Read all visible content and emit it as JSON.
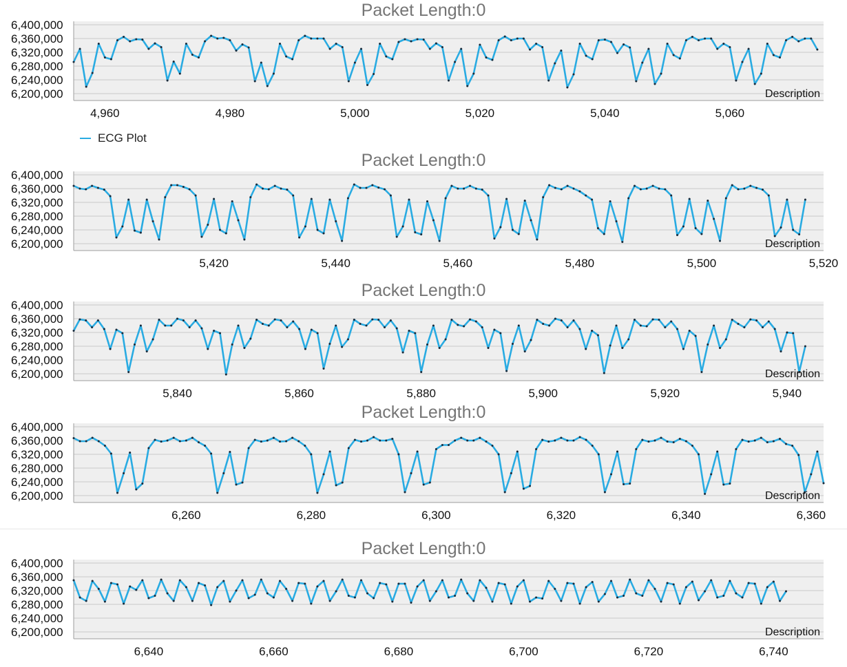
{
  "legend": {
    "label": "ECG Plot",
    "color": "#29abe2"
  },
  "panels": [
    {
      "title_prefix": "Packet Length:",
      "title_value": "0",
      "description": "Description"
    },
    {
      "title_prefix": "Packet Length:",
      "title_value": "0",
      "description": "Description"
    },
    {
      "title_prefix": "Packet Length:",
      "title_value": "0",
      "description": "Description"
    },
    {
      "title_prefix": "Packet Length:",
      "title_value": "0",
      "description": "Description"
    },
    {
      "title_prefix": "Packet Length:",
      "title_value": "0",
      "description": "Description"
    }
  ],
  "chart_data": [
    {
      "type": "line",
      "title": "Packet Length: 0",
      "series_name": "ECG Plot",
      "xlim": [
        4955,
        5075
      ],
      "ylim": [
        6180000,
        6410000
      ],
      "xticks": [
        4960,
        4980,
        5000,
        5020,
        5040,
        5060
      ],
      "xtick_labels": [
        "4,960",
        "4,980",
        "5,000",
        "5,020",
        "5,040",
        "5,060"
      ],
      "yticks": [
        6200000,
        6240000,
        6280000,
        6320000,
        6360000,
        6400000
      ],
      "ytick_labels": [
        "6,200,000",
        "6,240,000",
        "6,280,000",
        "6,320,000",
        "6,360,000",
        "6,400,000"
      ],
      "x_start": 4955,
      "x_step": 1,
      "values": [
        6292000,
        6330000,
        6220000,
        6260000,
        6345000,
        6305000,
        6300000,
        6355000,
        6365000,
        6352000,
        6358000,
        6357000,
        6330000,
        6346000,
        6335000,
        6238000,
        6293000,
        6258000,
        6345000,
        6313000,
        6305000,
        6352000,
        6368000,
        6360000,
        6362000,
        6355000,
        6325000,
        6343000,
        6334000,
        6236000,
        6290000,
        6222000,
        6258000,
        6345000,
        6308000,
        6300000,
        6355000,
        6368000,
        6360000,
        6360000,
        6360000,
        6330000,
        6345000,
        6335000,
        6236000,
        6290000,
        6330000,
        6225000,
        6257000,
        6345000,
        6308000,
        6300000,
        6350000,
        6358000,
        6352000,
        6358000,
        6357000,
        6330000,
        6346000,
        6335000,
        6238000,
        6292000,
        6330000,
        6222000,
        6258000,
        6342000,
        6305000,
        6298000,
        6355000,
        6366000,
        6355000,
        6360000,
        6360000,
        6328000,
        6345000,
        6335000,
        6238000,
        6288000,
        6325000,
        6218000,
        6256000,
        6345000,
        6310000,
        6300000,
        6355000,
        6357000,
        6350000,
        6318000,
        6343000,
        6334000,
        6236000,
        6290000,
        6330000,
        6228000,
        6258000,
        6345000,
        6312000,
        6302000,
        6355000,
        6365000,
        6355000,
        6360000,
        6360000,
        6330000,
        6345000,
        6335000,
        6238000,
        6292000,
        6330000,
        6228000,
        6258000,
        6345000,
        6312000,
        6305000,
        6355000,
        6365000,
        6352000,
        6360000,
        6360000,
        6328000
      ]
    },
    {
      "type": "line",
      "title": "Packet Length: 0",
      "series_name": "ECG Plot",
      "xlim": [
        5397,
        5520
      ],
      "ylim": [
        6180000,
        6410000
      ],
      "xticks": [
        5420,
        5440,
        5460,
        5480,
        5500,
        5520
      ],
      "xtick_labels": [
        "5,420",
        "5,440",
        "5,460",
        "5,480",
        "5,500",
        "5,520"
      ],
      "yticks": [
        6200000,
        6240000,
        6280000,
        6320000,
        6360000,
        6400000
      ],
      "ytick_labels": [
        "6,200,000",
        "6,240,000",
        "6,280,000",
        "6,320,000",
        "6,360,000",
        "6,400,000"
      ],
      "x_start": 5397,
      "x_step": 1,
      "values": [
        6368000,
        6360000,
        6358000,
        6368000,
        6362000,
        6357000,
        6338000,
        6218000,
        6250000,
        6328000,
        6238000,
        6232000,
        6328000,
        6265000,
        6212000,
        6335000,
        6370000,
        6370000,
        6365000,
        6358000,
        6340000,
        6220000,
        6255000,
        6330000,
        6240000,
        6230000,
        6323000,
        6268000,
        6212000,
        6335000,
        6372000,
        6360000,
        6358000,
        6368000,
        6360000,
        6357000,
        6340000,
        6218000,
        6250000,
        6330000,
        6240000,
        6230000,
        6328000,
        6265000,
        6208000,
        6332000,
        6372000,
        6362000,
        6362000,
        6370000,
        6363000,
        6358000,
        6340000,
        6220000,
        6250000,
        6328000,
        6233000,
        6227000,
        6323000,
        6268000,
        6208000,
        6332000,
        6368000,
        6360000,
        6360000,
        6368000,
        6360000,
        6357000,
        6340000,
        6215000,
        6248000,
        6330000,
        6240000,
        6228000,
        6325000,
        6268000,
        6212000,
        6335000,
        6370000,
        6362000,
        6358000,
        6368000,
        6360000,
        6352000,
        6340000,
        6328000,
        6245000,
        6228000,
        6323000,
        6265000,
        6205000,
        6332000,
        6368000,
        6358000,
        6360000,
        6368000,
        6360000,
        6358000,
        6340000,
        6225000,
        6250000,
        6330000,
        6245000,
        6228000,
        6325000,
        6272000,
        6208000,
        6332000,
        6370000,
        6358000,
        6360000,
        6368000,
        6362000,
        6357000,
        6340000,
        6222000,
        6247000,
        6328000,
        6240000,
        6227000,
        6328000
      ]
    },
    {
      "type": "line",
      "title": "Packet Length: 0",
      "series_name": "ECG Plot",
      "xlim": [
        5823,
        5946
      ],
      "ylim": [
        6180000,
        6410000
      ],
      "xticks": [
        5840,
        5860,
        5880,
        5900,
        5920,
        5940
      ],
      "xtick_labels": [
        "5,840",
        "5,860",
        "5,880",
        "5,900",
        "5,920",
        "5,940"
      ],
      "yticks": [
        6200000,
        6240000,
        6280000,
        6320000,
        6360000,
        6400000
      ],
      "ytick_labels": [
        "6,200,000",
        "6,240,000",
        "6,280,000",
        "6,320,000",
        "6,360,000",
        "6,400,000"
      ],
      "x_start": 5823,
      "x_step": 1,
      "values": [
        6325000,
        6358000,
        6355000,
        6335000,
        6355000,
        6330000,
        6272000,
        6328000,
        6318000,
        6205000,
        6285000,
        6340000,
        6265000,
        6300000,
        6357000,
        6340000,
        6340000,
        6360000,
        6355000,
        6335000,
        6355000,
        6332000,
        6272000,
        6325000,
        6318000,
        6198000,
        6285000,
        6340000,
        6275000,
        6302000,
        6357000,
        6345000,
        6340000,
        6358000,
        6355000,
        6335000,
        6352000,
        6330000,
        6272000,
        6328000,
        6318000,
        6215000,
        6287000,
        6340000,
        6278000,
        6300000,
        6357000,
        6345000,
        6340000,
        6358000,
        6357000,
        6335000,
        6355000,
        6332000,
        6262000,
        6325000,
        6318000,
        6205000,
        6285000,
        6340000,
        6275000,
        6300000,
        6357000,
        6342000,
        6338000,
        6358000,
        6352000,
        6335000,
        6275000,
        6328000,
        6318000,
        6208000,
        6287000,
        6340000,
        6265000,
        6298000,
        6357000,
        6345000,
        6340000,
        6360000,
        6355000,
        6335000,
        6355000,
        6330000,
        6272000,
        6325000,
        6312000,
        6202000,
        6282000,
        6340000,
        6275000,
        6300000,
        6357000,
        6340000,
        6338000,
        6358000,
        6357000,
        6335000,
        6352000,
        6330000,
        6272000,
        6325000,
        6310000,
        6205000,
        6285000,
        6340000,
        6275000,
        6300000,
        6357000,
        6345000,
        6335000,
        6358000,
        6355000,
        6335000,
        6352000,
        6330000,
        6265000,
        6320000,
        6318000,
        6205000,
        6280000
      ]
    },
    {
      "type": "line",
      "title": "Packet Length: 0",
      "series_name": "ECG Plot",
      "xlim": [
        6242,
        6362
      ],
      "ylim": [
        6180000,
        6410000
      ],
      "xticks": [
        6260,
        6280,
        6300,
        6320,
        6340,
        6360
      ],
      "xtick_labels": [
        "6,260",
        "6,280",
        "6,300",
        "6,320",
        "6,340",
        "6,360"
      ],
      "yticks": [
        6200000,
        6240000,
        6280000,
        6320000,
        6360000,
        6400000
      ],
      "ytick_labels": [
        "6,200,000",
        "6,240,000",
        "6,280,000",
        "6,320,000",
        "6,360,000",
        "6,400,000"
      ],
      "x_start": 6242,
      "x_step": 1,
      "values": [
        6367000,
        6358000,
        6358000,
        6368000,
        6358000,
        6345000,
        6322000,
        6208000,
        6265000,
        6325000,
        6218000,
        6235000,
        6338000,
        6362000,
        6357000,
        6360000,
        6368000,
        6358000,
        6360000,
        6368000,
        6355000,
        6345000,
        6322000,
        6208000,
        6265000,
        6327000,
        6232000,
        6238000,
        6338000,
        6362000,
        6357000,
        6360000,
        6368000,
        6357000,
        6358000,
        6368000,
        6358000,
        6345000,
        6320000,
        6208000,
        6262000,
        6328000,
        6230000,
        6238000,
        6338000,
        6362000,
        6357000,
        6360000,
        6370000,
        6360000,
        6360000,
        6365000,
        6320000,
        6210000,
        6265000,
        6328000,
        6232000,
        6238000,
        6335000,
        6347000,
        6347000,
        6360000,
        6368000,
        6360000,
        6360000,
        6368000,
        6357000,
        6345000,
        6320000,
        6210000,
        6265000,
        6328000,
        6220000,
        6228000,
        6335000,
        6362000,
        6357000,
        6360000,
        6368000,
        6360000,
        6360000,
        6370000,
        6362000,
        6345000,
        6320000,
        6210000,
        6262000,
        6328000,
        6233000,
        6235000,
        6335000,
        6362000,
        6357000,
        6360000,
        6368000,
        6357000,
        6355000,
        6365000,
        6358000,
        6345000,
        6320000,
        6205000,
        6262000,
        6328000,
        6232000,
        6235000,
        6335000,
        6362000,
        6357000,
        6360000,
        6368000,
        6355000,
        6358000,
        6365000,
        6350000,
        6345000,
        6318000,
        6210000,
        6262000,
        6328000,
        6236000
      ]
    },
    {
      "type": "line",
      "title": "Packet Length: 0",
      "series_name": "ECG Plot",
      "xlim": [
        6628,
        6748
      ],
      "ylim": [
        6180000,
        6410000
      ],
      "xticks": [
        6640,
        6660,
        6680,
        6700,
        6720,
        6740
      ],
      "xtick_labels": [
        "6,640",
        "6,660",
        "6,680",
        "6,700",
        "6,720",
        "6,740"
      ],
      "yticks": [
        6200000,
        6240000,
        6280000,
        6320000,
        6360000,
        6400000
      ],
      "ytick_labels": [
        "6,200,000",
        "6,240,000",
        "6,280,000",
        "6,320,000",
        "6,360,000",
        "6,400,000"
      ],
      "x_start": 6628,
      "x_step": 1,
      "values": [
        6350000,
        6300000,
        6290000,
        6348000,
        6325000,
        6288000,
        6342000,
        6338000,
        6282000,
        6332000,
        6322000,
        6350000,
        6298000,
        6305000,
        6352000,
        6312000,
        6290000,
        6350000,
        6330000,
        6290000,
        6342000,
        6335000,
        6278000,
        6330000,
        6348000,
        6288000,
        6320000,
        6350000,
        6298000,
        6308000,
        6352000,
        6312000,
        6300000,
        6348000,
        6325000,
        6290000,
        6342000,
        6340000,
        6282000,
        6332000,
        6348000,
        6290000,
        6318000,
        6352000,
        6305000,
        6300000,
        6350000,
        6312000,
        6298000,
        6342000,
        6338000,
        6288000,
        6340000,
        6340000,
        6285000,
        6332000,
        6350000,
        6290000,
        6318000,
        6350000,
        6300000,
        6305000,
        6352000,
        6312000,
        6290000,
        6350000,
        6328000,
        6288000,
        6342000,
        6338000,
        6282000,
        6332000,
        6350000,
        6288000,
        6300000,
        6297000,
        6348000,
        6325000,
        6290000,
        6342000,
        6340000,
        6282000,
        6330000,
        6345000,
        6288000,
        6310000,
        6348000,
        6300000,
        6305000,
        6352000,
        6312000,
        6305000,
        6350000,
        6325000,
        6288000,
        6342000,
        6338000,
        6282000,
        6330000,
        6346000,
        6292000,
        6318000,
        6350000,
        6300000,
        6305000,
        6348000,
        6312000,
        6300000,
        6342000,
        6340000,
        6282000,
        6330000,
        6346000,
        6290000,
        6318000
      ]
    }
  ]
}
